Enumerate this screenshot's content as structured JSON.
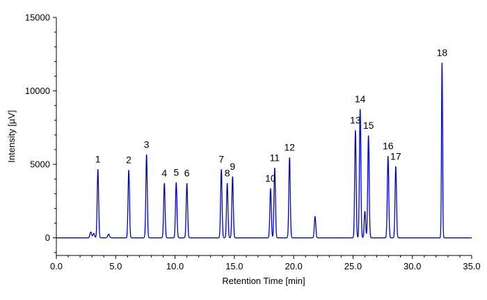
{
  "chart_data": {
    "type": "line",
    "title": "",
    "xlabel": "Retention Time [min]",
    "ylabel": "Intensity [µV]",
    "xlim": [
      0,
      35
    ],
    "ylim": [
      -1200,
      15000
    ],
    "xticks": [
      0,
      5,
      10,
      15,
      20,
      25,
      30,
      35
    ],
    "xtick_labels": [
      "0.0",
      "5.0",
      "10.0",
      "15.0",
      "20.0",
      "25.0",
      "30.0",
      "35.0"
    ],
    "yticks": [
      0,
      5000,
      10000,
      15000
    ],
    "ytick_labels": [
      "0",
      "5000",
      "10000",
      "15000"
    ],
    "grid": false,
    "line_color": "#0000dd",
    "series": [
      {
        "name": "",
        "baseline": 0,
        "peaks": [
          {
            "label": "",
            "rt": 2.9,
            "height": 400
          },
          {
            "label": "",
            "rt": 3.15,
            "height": 300
          },
          {
            "label": "1",
            "rt": 3.5,
            "height": 4650
          },
          {
            "label": "",
            "rt": 4.4,
            "height": 250
          },
          {
            "label": "2",
            "rt": 6.1,
            "height": 4600
          },
          {
            "label": "3",
            "rt": 7.6,
            "height": 5650
          },
          {
            "label": "4",
            "rt": 9.1,
            "height": 3700
          },
          {
            "label": "5",
            "rt": 10.1,
            "height": 3750
          },
          {
            "label": "6",
            "rt": 11.0,
            "height": 3700
          },
          {
            "label": "7",
            "rt": 13.9,
            "height": 4650
          },
          {
            "label": "8",
            "rt": 14.4,
            "height": 3700
          },
          {
            "label": "9",
            "rt": 14.85,
            "height": 4150
          },
          {
            "label": "10",
            "rt": 18.05,
            "height": 3350
          },
          {
            "label": "11",
            "rt": 18.4,
            "height": 4750
          },
          {
            "label": "12",
            "rt": 19.65,
            "height": 5450
          },
          {
            "label": "",
            "rt": 21.8,
            "height": 1450
          },
          {
            "label": "13",
            "rt": 25.2,
            "height": 7300
          },
          {
            "label": "14",
            "rt": 25.6,
            "height": 8750
          },
          {
            "label": "",
            "rt": 26.0,
            "height": 1800
          },
          {
            "label": "15",
            "rt": 26.3,
            "height": 6950
          },
          {
            "label": "16",
            "rt": 27.95,
            "height": 5550
          },
          {
            "label": "17",
            "rt": 28.6,
            "height": 4850
          },
          {
            "label": "18",
            "rt": 32.5,
            "height": 11900
          }
        ]
      }
    ]
  }
}
